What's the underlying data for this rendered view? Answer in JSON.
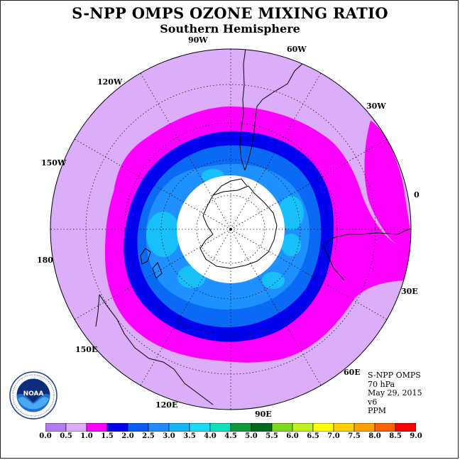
{
  "title": "S-NPP OMPS OZONE MIXING RATIO",
  "subtitle": "Southern Hemisphere",
  "longitude_labels": [
    {
      "label": "90W",
      "lon": -90
    },
    {
      "label": "60W",
      "lon": -60
    },
    {
      "label": "30W",
      "lon": -30
    },
    {
      "label": "0",
      "lon": 0
    },
    {
      "label": "30E",
      "lon": 30
    },
    {
      "label": "60E",
      "lon": 60
    },
    {
      "label": "90E",
      "lon": 90
    },
    {
      "label": "120E",
      "lon": 120
    },
    {
      "label": "150E",
      "lon": 150
    },
    {
      "label": "180",
      "lon": 180
    },
    {
      "label": "150W",
      "lon": -150
    },
    {
      "label": "120W",
      "lon": -120
    }
  ],
  "info": {
    "instrument": "S-NPP OMPS",
    "level": "70 hPa",
    "date": "May 29, 2015",
    "version": "v6",
    "units": "PPM"
  },
  "logo": {
    "text": "NOAA",
    "ring_text": "NATIONAL OCEANIC AND ATMOSPHERIC ADMINISTRATION · U.S. DEPARTMENT OF COMMERCE"
  },
  "colorbar": {
    "ticks": [
      "0.0",
      "0.5",
      "1.0",
      "1.5",
      "2.0",
      "2.5",
      "3.0",
      "3.5",
      "4.0",
      "4.5",
      "5.0",
      "5.5",
      "6.0",
      "6.5",
      "7.0",
      "7.5",
      "8.0",
      "8.5",
      "9.0"
    ],
    "colors": [
      "#b57cf0",
      "#dcaefa",
      "#ff00ff",
      "#0000ee",
      "#0a5ef5",
      "#1e8cff",
      "#17b5fa",
      "#1fd8f8",
      "#10e0c0",
      "#0b9a3c",
      "#006a1e",
      "#7fd81c",
      "#bff01a",
      "#ffff00",
      "#ffd000",
      "#ffa000",
      "#ff6000",
      "#ff0000",
      "#8b5a2b"
    ],
    "used_colors": {
      "background": "#dcaefa",
      "level_1_0": "#ff00ff",
      "level_1_5": "#0000ee",
      "level_2_0": "#0a6af5",
      "level_2_5": "#1e90ff",
      "level_3_0": "#18c0fa",
      "missing": "#ffffff"
    }
  }
}
